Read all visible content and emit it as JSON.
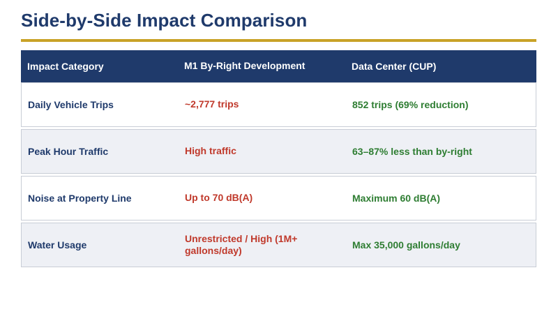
{
  "title": "Side-by-Side Impact Comparison",
  "colors": {
    "navy": "#1f3a6b",
    "gold": "#c9a227",
    "red": "#c0392b",
    "green": "#2e7d32"
  },
  "table": {
    "headers": [
      "Impact Category",
      "M1 By-Right Development",
      "Data Center (CUP)"
    ],
    "rows": [
      {
        "category": "Daily Vehicle Trips",
        "m1": "~2,777 trips",
        "dc": "852 trips (69% reduction)"
      },
      {
        "category": "Peak Hour Traffic",
        "m1": "High traffic",
        "dc": "63–87% less than by-right"
      },
      {
        "category": "Noise at Property Line",
        "m1": "Up to 70 dB(A)",
        "dc": "Maximum 60 dB(A)"
      },
      {
        "category": "Water Usage",
        "m1": "Unrestricted / High (1M+ gallons/day)",
        "dc": "Max 35,000 gallons/day"
      }
    ]
  }
}
